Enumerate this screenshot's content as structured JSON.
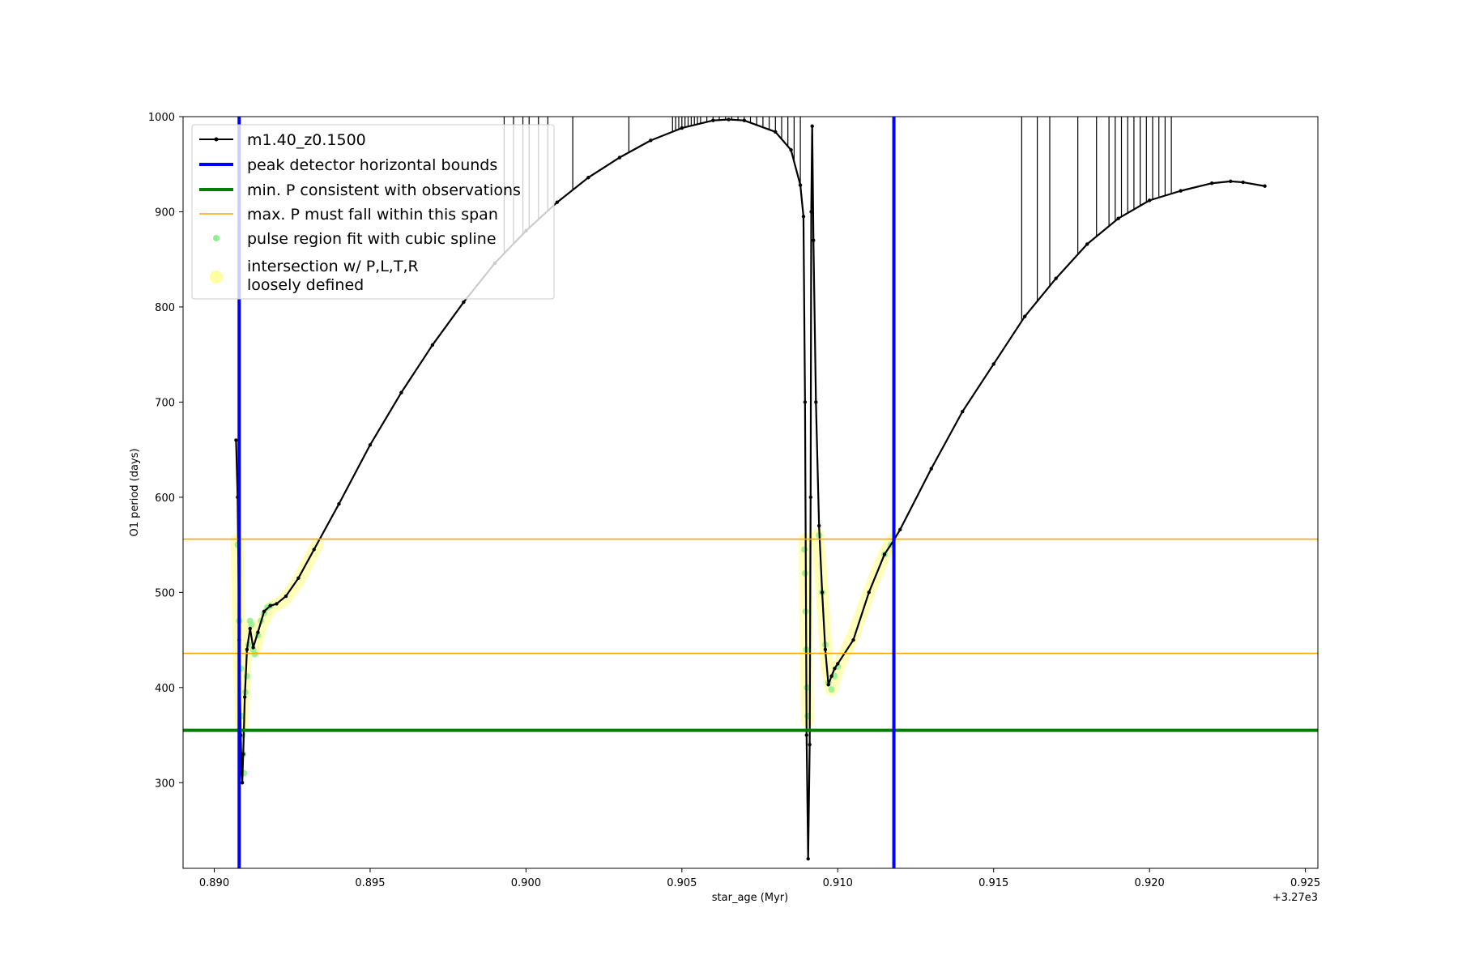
{
  "chart_data": {
    "type": "line",
    "xlabel": "star_age (Myr)",
    "ylabel": "O1 period (days)",
    "x_offset_label": "+3.27e3",
    "xlim": [
      0.889,
      0.9254
    ],
    "ylim": [
      210,
      1000
    ],
    "x_ticks": [
      0.89,
      0.895,
      0.9,
      0.905,
      0.91,
      0.915,
      0.92,
      0.925
    ],
    "x_tick_labels": [
      "0.890",
      "0.895",
      "0.900",
      "0.905",
      "0.910",
      "0.915",
      "0.920",
      "0.925"
    ],
    "y_ticks": [
      300,
      400,
      500,
      600,
      700,
      800,
      900,
      1000
    ],
    "y_tick_labels": [
      "300",
      "400",
      "500",
      "600",
      "700",
      "800",
      "900",
      "1000"
    ],
    "grid": false,
    "legend_position": "upper-left",
    "legend": [
      {
        "label": "m1.40_z0.1500",
        "kind": "line-marker",
        "color": "#000000"
      },
      {
        "label": "peak detector horizontal bounds",
        "kind": "thick-line",
        "color": "#0000ff"
      },
      {
        "label": "min. P consistent with observations",
        "kind": "thick-line",
        "color": "#008000"
      },
      {
        "label": "max. P must fall within this span",
        "kind": "line",
        "color": "#ffa500"
      },
      {
        "label": "pulse region fit with cubic spline",
        "kind": "dot",
        "color": "#90ee90"
      },
      {
        "label": "intersection w/ P,L,T,R\nloosely defined",
        "kind": "big-dot",
        "color": "#ffffa0"
      }
    ],
    "series": [
      {
        "name": "m1.40_z0.1500",
        "color": "#000000",
        "points": [
          [
            0.8907,
            660
          ],
          [
            0.89075,
            600
          ],
          [
            0.8908,
            450
          ],
          [
            0.89085,
            350
          ],
          [
            0.89088,
            310
          ],
          [
            0.8909,
            300
          ],
          [
            0.89093,
            330
          ],
          [
            0.89098,
            390
          ],
          [
            0.89105,
            440
          ],
          [
            0.89115,
            462
          ],
          [
            0.89125,
            442
          ],
          [
            0.8914,
            458
          ],
          [
            0.8916,
            480
          ],
          [
            0.8918,
            486
          ],
          [
            0.892,
            488
          ],
          [
            0.8923,
            496
          ],
          [
            0.8927,
            515
          ],
          [
            0.8932,
            545
          ],
          [
            0.894,
            593
          ],
          [
            0.895,
            655
          ],
          [
            0.896,
            710
          ],
          [
            0.897,
            760
          ],
          [
            0.898,
            805
          ],
          [
            0.899,
            846
          ],
          [
            0.9,
            880
          ],
          [
            0.901,
            910
          ],
          [
            0.902,
            936
          ],
          [
            0.903,
            957
          ],
          [
            0.904,
            975
          ],
          [
            0.905,
            988
          ],
          [
            0.906,
            996
          ],
          [
            0.9065,
            997
          ],
          [
            0.907,
            996
          ],
          [
            0.908,
            984
          ],
          [
            0.9085,
            965
          ],
          [
            0.9088,
            928
          ],
          [
            0.9089,
            895
          ],
          [
            0.90895,
            700
          ],
          [
            0.909,
            350
          ],
          [
            0.90905,
            220
          ],
          [
            0.9091,
            340
          ],
          [
            0.90913,
            600
          ],
          [
            0.90915,
            900
          ],
          [
            0.90918,
            990
          ],
          [
            0.90922,
            870
          ],
          [
            0.9093,
            700
          ],
          [
            0.9094,
            570
          ],
          [
            0.9095,
            500
          ],
          [
            0.9096,
            440
          ],
          [
            0.9097,
            403
          ],
          [
            0.9098,
            412
          ],
          [
            0.9099,
            420
          ],
          [
            0.91,
            425
          ],
          [
            0.9105,
            450
          ],
          [
            0.911,
            500
          ],
          [
            0.9115,
            540
          ],
          [
            0.9118,
            555
          ],
          [
            0.912,
            566
          ],
          [
            0.913,
            630
          ],
          [
            0.914,
            690
          ],
          [
            0.915,
            740
          ],
          [
            0.916,
            790
          ],
          [
            0.917,
            830
          ],
          [
            0.918,
            866
          ],
          [
            0.919,
            893
          ],
          [
            0.92,
            912
          ],
          [
            0.921,
            922
          ],
          [
            0.922,
            930
          ],
          [
            0.9226,
            932
          ],
          [
            0.923,
            931
          ],
          [
            0.9237,
            927
          ]
        ]
      }
    ],
    "spikes": [
      0.8993,
      0.8996,
      0.8999,
      0.9001,
      0.9004,
      0.9007,
      0.9015,
      0.9033,
      0.9047,
      0.9048,
      0.9049,
      0.905,
      0.9051,
      0.9052,
      0.9053,
      0.9054,
      0.9055,
      0.9056,
      0.9058,
      0.906,
      0.9062,
      0.9064,
      0.9066,
      0.9068,
      0.907,
      0.9072,
      0.9074,
      0.9076,
      0.9078,
      0.908,
      0.9082,
      0.9084,
      0.9086,
      0.9088,
      0.9159,
      0.9164,
      0.9168,
      0.9177,
      0.9183,
      0.9187,
      0.9189,
      0.9191,
      0.9193,
      0.9195,
      0.9197,
      0.9199,
      0.9201,
      0.9203,
      0.9205,
      0.9207
    ],
    "spike_top": 1000,
    "peak_detector_bounds_x": [
      0.8908,
      0.9118
    ],
    "min_period_line_y": 355,
    "max_period_span_y": [
      436,
      556
    ],
    "pulse_region_points": [
      [
        0.89075,
        550
      ],
      [
        0.8908,
        470
      ],
      [
        0.89085,
        420
      ],
      [
        0.89088,
        370
      ],
      [
        0.8909,
        350
      ],
      [
        0.89093,
        330
      ],
      [
        0.89096,
        310
      ],
      [
        0.891,
        395
      ],
      [
        0.89105,
        412
      ],
      [
        0.8911,
        445
      ],
      [
        0.89115,
        470
      ],
      [
        0.8912,
        466
      ],
      [
        0.89125,
        440
      ],
      [
        0.8913,
        435
      ],
      [
        0.8914,
        455
      ],
      [
        0.8915,
        470
      ],
      [
        0.8916,
        478
      ],
      [
        0.8917,
        484
      ],
      [
        0.8918,
        486
      ],
      [
        0.90893,
        545
      ],
      [
        0.90895,
        520
      ],
      [
        0.90897,
        480
      ],
      [
        0.90899,
        440
      ],
      [
        0.90901,
        400
      ],
      [
        0.90903,
        370
      ],
      [
        0.9094,
        560
      ],
      [
        0.9095,
        500
      ],
      [
        0.9096,
        445
      ],
      [
        0.9097,
        405
      ],
      [
        0.9098,
        398
      ],
      [
        0.9099,
        412
      ],
      [
        0.91,
        422
      ],
      [
        0.9115,
        540
      ],
      [
        0.9117,
        550
      ]
    ],
    "intersection_segments": [
      [
        [
          0.89073,
          555
        ],
        [
          0.8908,
          440
        ],
        [
          0.89088,
          360
        ],
        [
          0.89093,
          380
        ],
        [
          0.891,
          440
        ],
        [
          0.89115,
          465
        ],
        [
          0.8913,
          440
        ],
        [
          0.8915,
          465
        ],
        [
          0.8918,
          484
        ],
        [
          0.8922,
          490
        ],
        [
          0.8927,
          512
        ],
        [
          0.8933,
          550
        ]
      ],
      [
        [
          0.90895,
          555
        ],
        [
          0.909,
          420
        ],
        [
          0.90903,
          365
        ]
      ],
      [
        [
          0.90935,
          560
        ],
        [
          0.9095,
          500
        ],
        [
          0.90965,
          425
        ],
        [
          0.9098,
          398
        ],
        [
          0.91,
          420
        ],
        [
          0.9105,
          455
        ],
        [
          0.911,
          500
        ],
        [
          0.9115,
          540
        ],
        [
          0.91175,
          555
        ]
      ]
    ]
  }
}
